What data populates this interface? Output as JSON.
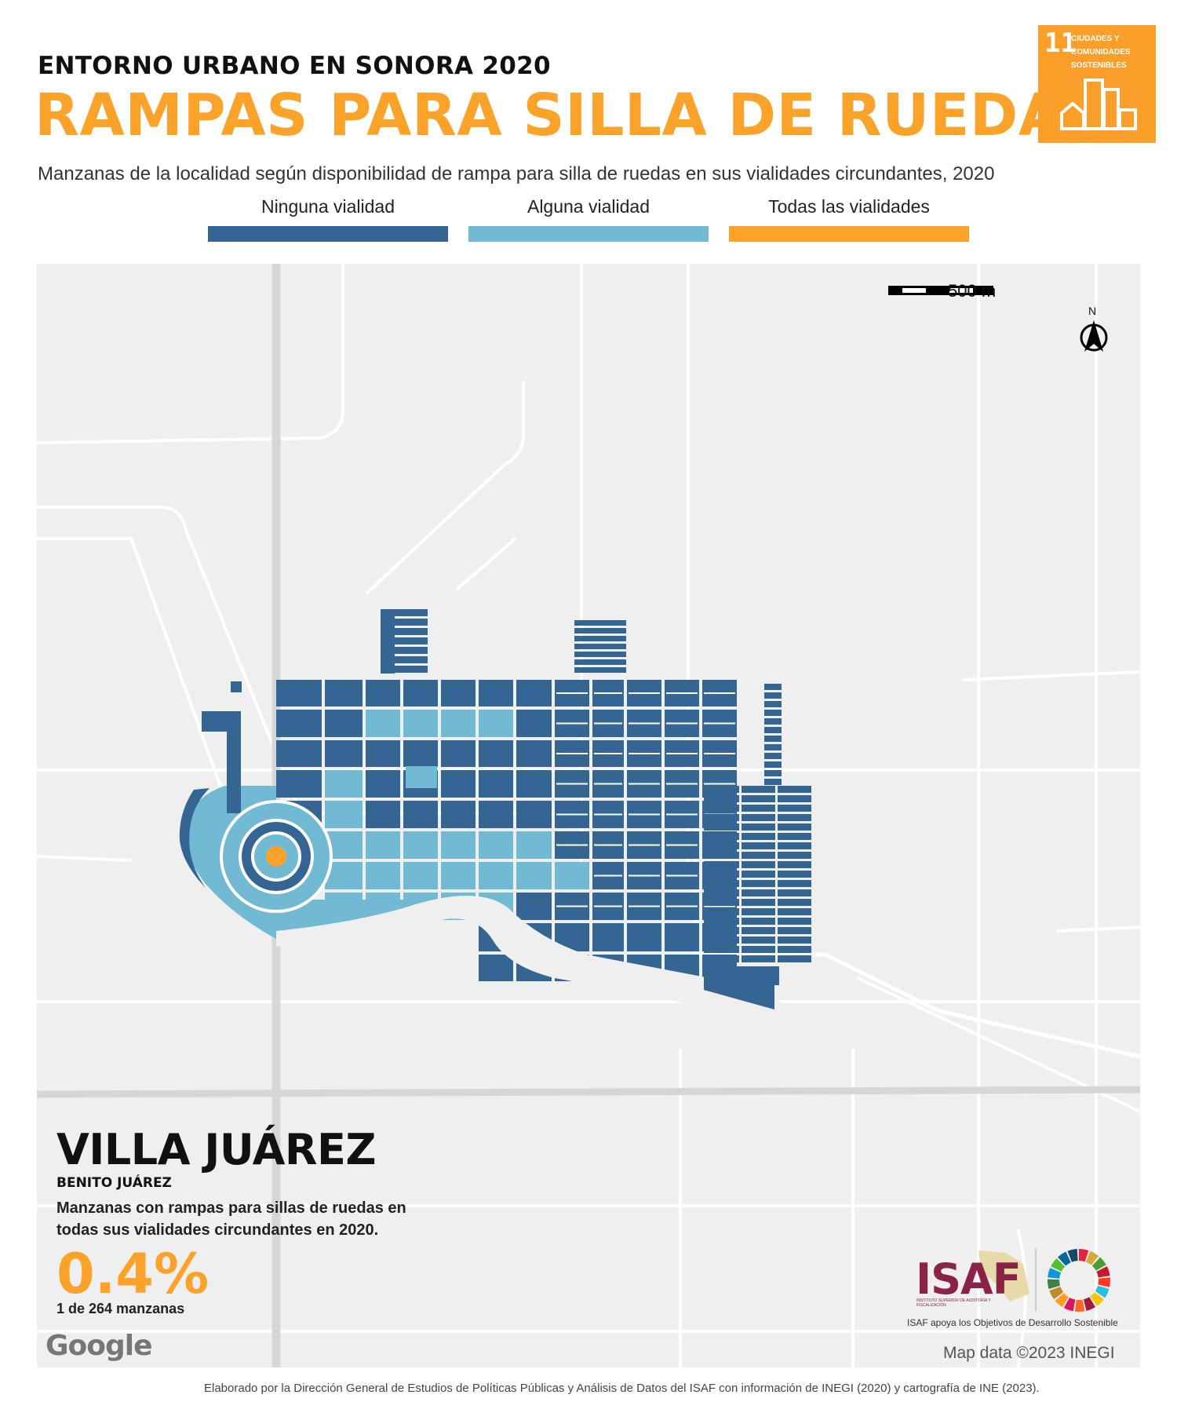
{
  "header": {
    "subtitle": "ENTORNO URBANO EN SONORA 2020",
    "title": "RAMPAS PARA SILLA DE RUEDAS",
    "description": "Manzanas de la localidad según disponibilidad de rampa para silla de ruedas en sus vialidades circundantes, 2020"
  },
  "sdg_badge": {
    "number": "11",
    "text_line1": "CIUDADES Y",
    "text_line2": "COMUNIDADES",
    "text_line3": "SOSTENIBLES",
    "color": "#fb9f2a"
  },
  "legend": [
    {
      "label": "Ninguna vialidad",
      "color": "#356592"
    },
    {
      "label": "Alguna vialidad",
      "color": "#72b9d4"
    },
    {
      "label": "Todas las vialidades",
      "color": "#fba22b"
    }
  ],
  "map": {
    "scale_label": "500 m",
    "north_label": "N",
    "credit": "Map data ©2023 INEGI",
    "google_logo": "Google"
  },
  "place": {
    "name": "VILLA JUÁREZ",
    "municipio": "BENITO JUÁREZ",
    "stat_description": "Manzanas con rampas para sillas de ruedas en todas sus vialidades circundantes en 2020.",
    "stat_value": "0.4%",
    "stat_count": "1 de 264 manzanas"
  },
  "logos": {
    "isaf": "ISAF",
    "isaf_subtitle": "INSTITUTO SUPERIOR DE AUDITORÍA Y FISCALIZACIÓN",
    "isaf_caption": "ISAF apoya los Objetivos de Desarrollo Sostenible"
  },
  "footer": "Elaborado por la Dirección General de Estudios de Políticas Públicas y Análisis de Datos del ISAF con información de INEGI (2020) y cartografía de INE (2023)."
}
